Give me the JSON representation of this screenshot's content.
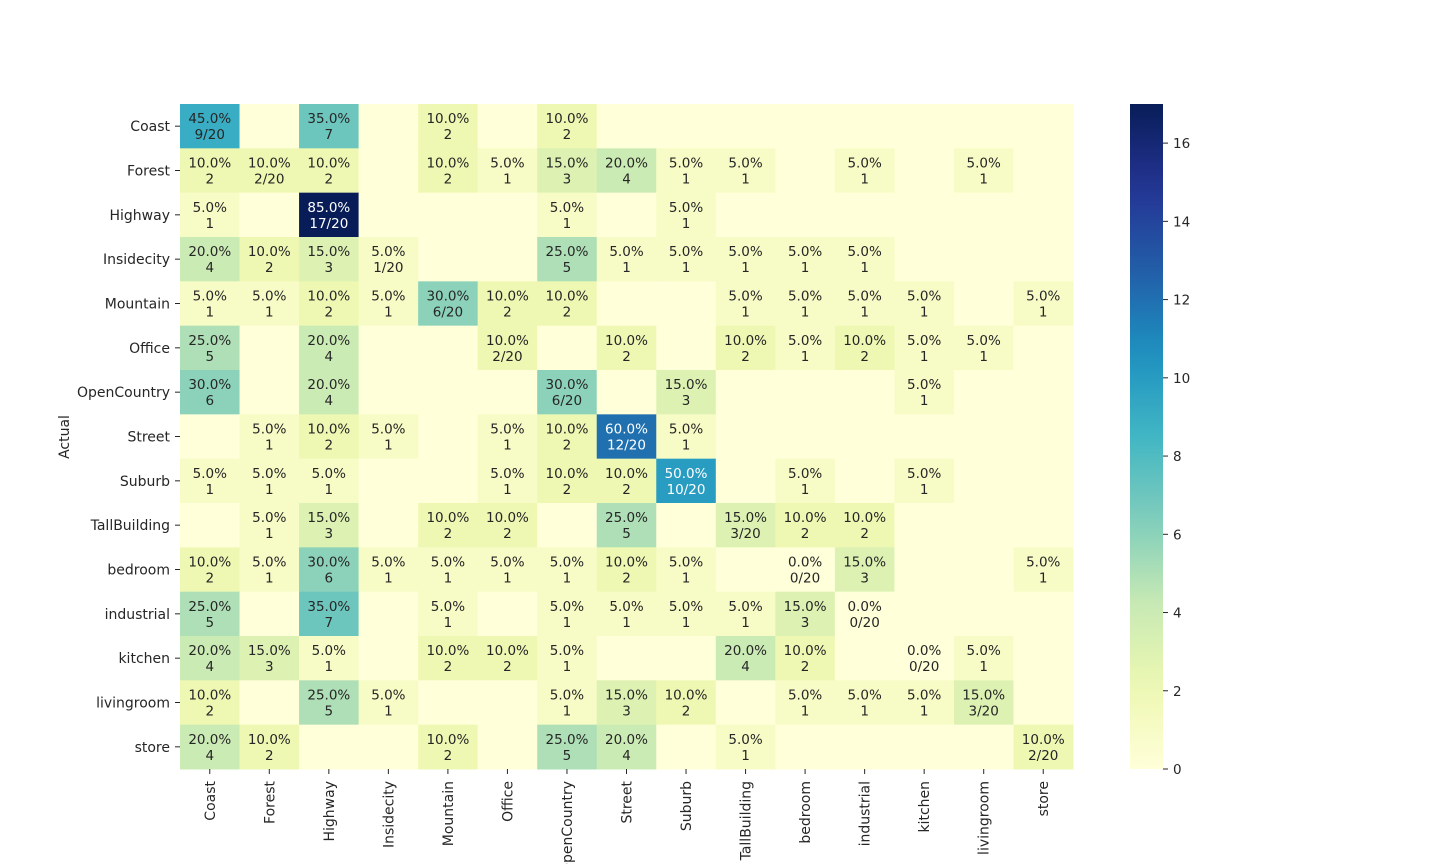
{
  "chart_data": {
    "type": "heatmap",
    "title": "",
    "xlabel": "",
    "ylabel": "Actual",
    "x_categories": [
      "Coast",
      "Forest",
      "Highway",
      "Insidecity",
      "Mountain",
      "Office",
      "OpenCountry",
      "Street",
      "Suburb",
      "TallBuilding",
      "bedroom",
      "industrial",
      "kitchen",
      "livingroom",
      "store"
    ],
    "y_categories": [
      "Coast",
      "Forest",
      "Highway",
      "Insidecity",
      "Mountain",
      "Office",
      "OpenCountry",
      "Street",
      "Suburb",
      "TallBuilding",
      "bedroom",
      "industrial",
      "kitchen",
      "livingroom",
      "store"
    ],
    "values": [
      [
        9,
        0,
        7,
        0,
        2,
        0,
        2,
        0,
        0,
        0,
        0,
        0,
        0,
        0,
        0
      ],
      [
        2,
        2,
        2,
        0,
        2,
        1,
        3,
        4,
        1,
        1,
        0,
        1,
        0,
        1,
        0
      ],
      [
        1,
        0,
        17,
        0,
        0,
        0,
        1,
        0,
        1,
        0,
        0,
        0,
        0,
        0,
        0
      ],
      [
        4,
        2,
        3,
        1,
        0,
        0,
        5,
        1,
        1,
        1,
        1,
        1,
        0,
        0,
        0
      ],
      [
        1,
        1,
        2,
        1,
        6,
        2,
        2,
        0,
        0,
        1,
        1,
        1,
        1,
        0,
        1
      ],
      [
        5,
        0,
        4,
        0,
        0,
        2,
        0,
        2,
        0,
        2,
        1,
        2,
        1,
        1,
        0
      ],
      [
        6,
        0,
        4,
        0,
        0,
        0,
        6,
        0,
        3,
        0,
        0,
        0,
        1,
        0,
        0
      ],
      [
        0,
        1,
        2,
        1,
        0,
        1,
        2,
        12,
        1,
        0,
        0,
        0,
        0,
        0,
        0
      ],
      [
        1,
        1,
        1,
        0,
        0,
        1,
        2,
        2,
        10,
        0,
        1,
        0,
        1,
        0,
        0
      ],
      [
        0,
        1,
        3,
        0,
        2,
        2,
        0,
        5,
        0,
        3,
        2,
        2,
        0,
        0,
        0
      ],
      [
        2,
        1,
        6,
        1,
        1,
        1,
        1,
        2,
        1,
        0,
        0,
        3,
        0,
        0,
        1
      ],
      [
        5,
        0,
        7,
        0,
        1,
        0,
        1,
        1,
        1,
        1,
        3,
        0,
        0,
        0,
        0
      ],
      [
        4,
        3,
        1,
        0,
        2,
        2,
        1,
        0,
        0,
        4,
        2,
        0,
        0,
        1,
        0
      ],
      [
        2,
        0,
        5,
        1,
        0,
        0,
        1,
        3,
        2,
        0,
        1,
        1,
        1,
        3,
        0
      ],
      [
        4,
        2,
        0,
        0,
        2,
        0,
        5,
        4,
        0,
        1,
        0,
        0,
        0,
        0,
        2
      ]
    ],
    "row_total": 20,
    "annotation_format": "percent of row over count; diagonal shows count/20",
    "colormap": "YlGnBu",
    "colorbar": {
      "min": 0,
      "max": 17,
      "ticks": [
        0,
        2,
        4,
        6,
        8,
        10,
        12,
        14,
        16
      ]
    },
    "colors": {
      "low": "#ffffd9",
      "high": "#081d58"
    }
  }
}
